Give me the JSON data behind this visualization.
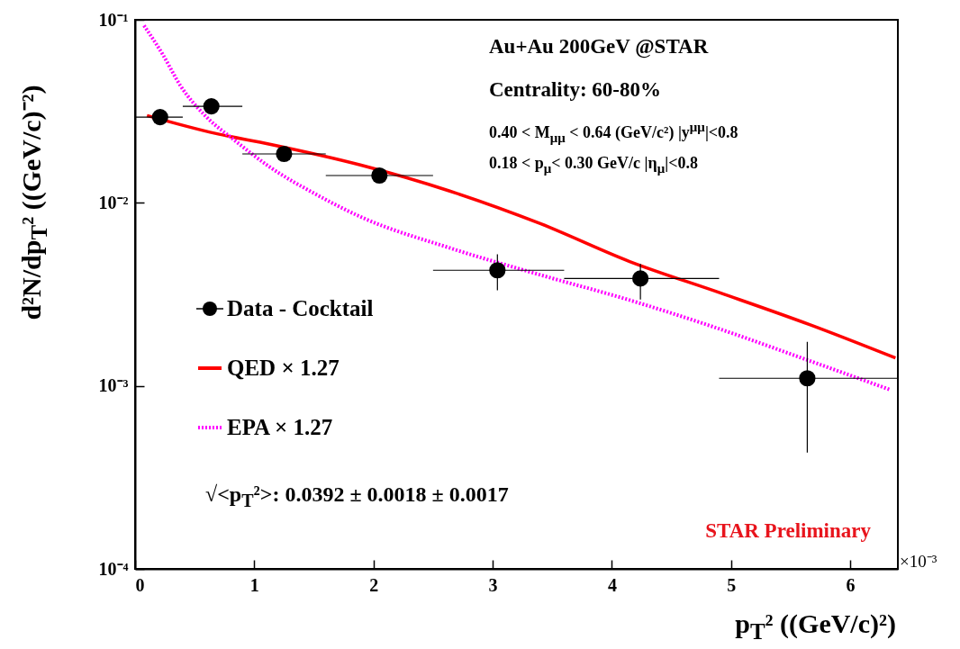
{
  "chart_data": {
    "type": "scatter",
    "log": "y",
    "legend": "left",
    "xlabel": "p$_{T}$² ((GeV/c)²)",
    "ylabel": "d²N/dp$_{T}$² ((GeV/c)⁻²)",
    "xlim": [
      0,
      6.4
    ],
    "xticks": [
      0,
      1,
      2,
      3,
      4,
      5,
      6
    ],
    "ylim": [
      0.0001,
      0.1
    ],
    "yticks": [
      {
        "value": 0.0001,
        "label": "10⁻⁴"
      },
      {
        "value": 0.001,
        "label": "10⁻³"
      },
      {
        "value": 0.01,
        "label": "10⁻²"
      },
      {
        "value": 0.1,
        "label": "10⁻¹"
      }
    ],
    "annotations": [
      "Au+Au 200GeV @STAR",
      "Centrality: 60-80%",
      "0.40 < M$_{μμ}$ < 0.64 (GeV/c²) |y$^{μμ}$|<0.8",
      "0.18 < p$_{μ}$< 0.30 GeV/c  |η$_{μ}$|<0.8",
      "√<p$_{T}$²>: 0.0392  ± 0.0018  ± 0.0017",
      "STAR Preliminary",
      "×10⁻³"
    ],
    "series": [
      {
        "name": "QED × 1.27",
        "type": "line",
        "color": "#ff0000",
        "line_style": "solid",
        "x": [
          0.1,
          0.68,
          1.13,
          1.89,
          2.64,
          3.4,
          4.15,
          4.91,
          5.66,
          6.38
        ],
        "values": [
          0.03,
          0.0239,
          0.0209,
          0.0161,
          0.0116,
          0.0077,
          0.00478,
          0.00322,
          0.00216,
          0.00142
        ]
      },
      {
        "name": "EPA × 1.27",
        "type": "line",
        "color": "#ff00ff",
        "line_style": "dotted",
        "x": [
          0.075,
          0.23,
          0.38,
          0.6,
          0.83,
          1.13,
          1.51,
          1.89,
          2.64,
          3.4,
          4.15,
          4.91,
          5.66,
          6.34
        ],
        "values": [
          0.093,
          0.065,
          0.0437,
          0.0294,
          0.0221,
          0.0157,
          0.0112,
          0.0084,
          0.00567,
          0.00404,
          0.00294,
          0.00204,
          0.00137,
          0.00095
        ]
      },
      {
        "name": "Data - Cocktail",
        "color": "#000000",
        "marker": "circle",
        "x": [
          0.21,
          0.64,
          1.25,
          2.05,
          3.04,
          4.24,
          5.64
        ],
        "values": [
          0.0294,
          0.0337,
          0.0185,
          0.0141,
          0.00428,
          0.00386,
          0.0011
        ],
        "errors": [
          null,
          null,
          null,
          null,
          [
            0.00333,
            0.00524
          ],
          [
            0.00296,
            0.00463
          ],
          [
            0.000432,
            0.00174
          ]
        ],
        "xerrors": [
          [
            0,
            0.4
          ],
          [
            0.4,
            0.9
          ],
          [
            0.9,
            1.6
          ],
          [
            1.6,
            2.5
          ],
          [
            2.5,
            3.6
          ],
          [
            3.6,
            4.9
          ],
          [
            4.9,
            6.4
          ]
        ]
      }
    ]
  }
}
